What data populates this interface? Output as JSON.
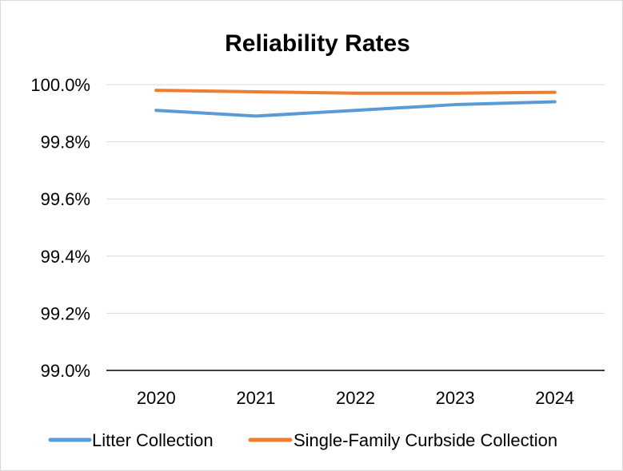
{
  "chart_data": {
    "type": "line",
    "title": "Reliability Rates",
    "xlabel": "",
    "ylabel": "",
    "categories": [
      "2020",
      "2021",
      "2022",
      "2023",
      "2024"
    ],
    "ylim": [
      99.0,
      100.0
    ],
    "y_ticks": [
      99.0,
      99.2,
      99.4,
      99.6,
      99.8,
      100.0
    ],
    "y_tick_labels": [
      "99.0%",
      "99.2%",
      "99.4%",
      "99.6%",
      "99.8%",
      "100.0%"
    ],
    "grid": true,
    "legend_position": "bottom",
    "series": [
      {
        "name": "Litter Collection",
        "color": "#5b9bd5",
        "values": [
          99.91,
          99.89,
          99.91,
          99.93,
          99.94
        ]
      },
      {
        "name": "Single-Family Curbside Collection",
        "color": "#ed7d31",
        "values": [
          99.98,
          99.975,
          99.97,
          99.97,
          99.973
        ]
      }
    ]
  }
}
